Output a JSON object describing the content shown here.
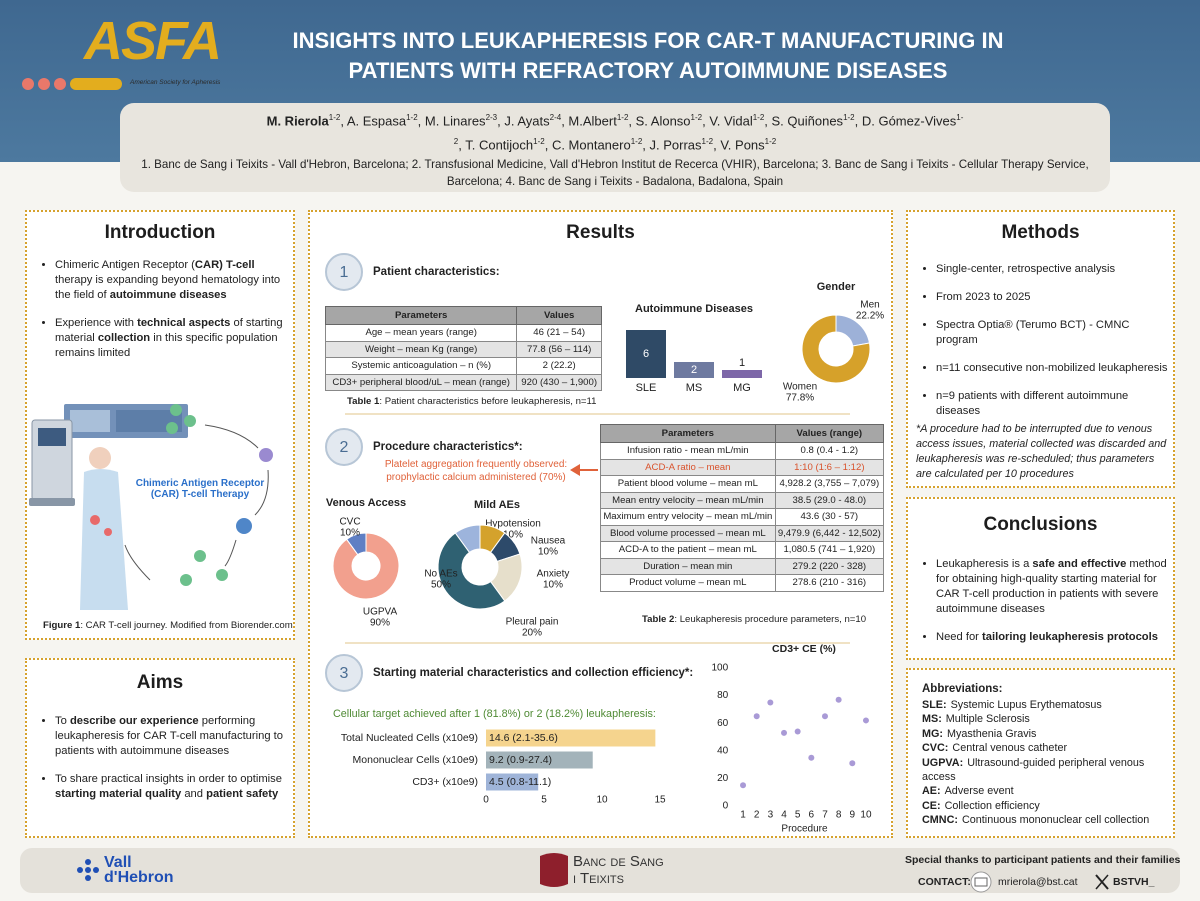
{
  "header": {
    "logo": {
      "name": "ASFA",
      "tagline": "American Society for Apheresis"
    },
    "title": [
      "INSIGHTS INTO LEUKAPHERESIS FOR CAR-T MANUFACTURING IN",
      "PATIENTS WITH REFRACTORY AUTOIMMUNE DISEASES"
    ],
    "authors": [
      {
        "text": "M. Rierola",
        "sup": "1-2",
        "bold": true
      },
      {
        "text": ", A. Espasa",
        "sup": "1-2"
      },
      {
        "text": ", M. Linares",
        "sup": "2-3"
      },
      {
        "text": ", J. Ayats",
        "sup": "2-4"
      },
      {
        "text": ", M.Albert",
        "sup": "1-2"
      },
      {
        "text": ", S. Alonso",
        "sup": "1-2"
      },
      {
        "text": ", V. Vidal",
        "sup": "1-2"
      },
      {
        "text": ", S. Quiñones",
        "sup": "1-2"
      },
      {
        "text": ", D. Gómez-Vives",
        "sup": "1-2"
      },
      {
        "text": ", T. Contijoch",
        "sup": "1-2"
      },
      {
        "text": ", C. Montanero",
        "sup": "1-2"
      },
      {
        "text": ", J. Porras",
        "sup": "1-2"
      },
      {
        "text": ", V. Pons",
        "sup": "1-2"
      }
    ],
    "affiliations": "1. Banc de Sang i Teixits - Vall d'Hebron, Barcelona; 2. Transfusional Medicine, Vall d'Hebron Institut de Recerca (VHIR), Barcelona; 3. Banc de Sang i Teixits - Cellular Therapy Service, Barcelona; 4. Banc de Sang i Teixits - Badalona, Badalona, Spain"
  },
  "introduction": {
    "title": "Introduction",
    "bullets": [
      [
        {
          "text": "Chimeric Antigen Receptor ("
        },
        {
          "text": "CAR) T-cell",
          "bold": true
        },
        {
          "text": " therapy is expanding beyond hematology into the field of "
        },
        {
          "text": "autoimmune diseases",
          "bold": true
        }
      ],
      [
        {
          "text": "Experience with "
        },
        {
          "text": "technical aspects",
          "bold": true
        },
        {
          "text": " of starting material "
        },
        {
          "text": "collection",
          "bold": true
        },
        {
          "text": " in this specific population remains limited"
        }
      ]
    ],
    "figure": {
      "label": "Chimeric Antigen Receptor (CAR) T-cell Therapy",
      "caption": {
        "label": "Figure 1",
        "text": ": CAR T-cell  journey. Modified from Biorender.com"
      }
    }
  },
  "aims": {
    "title": "Aims",
    "bullets": [
      [
        {
          "text": "To "
        },
        {
          "text": "describe our experience",
          "bold": true
        },
        {
          "text": " performing leukapheresis for CAR T-cell manufacturing to patients with autoimmune diseases"
        }
      ],
      [
        {
          "text": "To share practical insights in order to optimise "
        },
        {
          "text": "starting material quality",
          "bold": true
        },
        {
          "text": " and "
        },
        {
          "text": "patient safety",
          "bold": true
        }
      ]
    ]
  },
  "results": {
    "title": "Results",
    "patient": {
      "number": "1",
      "heading": "Patient characteristics:",
      "table": {
        "headers": [
          "Parameters",
          "Values"
        ],
        "rows": [
          [
            "Age – mean years (range)",
            "46 (21 – 54)"
          ],
          [
            "Weight – mean Kg (range)",
            "77.8 (56 – 114)"
          ],
          [
            "Systemic anticoagulation – n (%)",
            "2 (22.2)"
          ],
          [
            "CD3+ peripheral blood/uL – mean (range)",
            "920 (430 – 1,900)"
          ]
        ],
        "caption": {
          "label": "Table 1",
          "text": ": Patient characteristics before leukapheresis, n=11"
        }
      },
      "diseases": {
        "type": "bar",
        "title": "Autoimmune Diseases",
        "categories": [
          "SLE",
          "MS",
          "MG"
        ],
        "values": [
          6,
          2,
          1
        ],
        "colors": [
          "#2f4a66",
          "#6e7aa0",
          "#7d67a8"
        ]
      },
      "gender": {
        "type": "pie",
        "title": "Gender",
        "categories": [
          "Men",
          "Women"
        ],
        "values": [
          22.2,
          77.8
        ],
        "value_labels": [
          "22.2%",
          "77.8%"
        ],
        "colors": [
          "#9db1d8",
          "#d6a12a"
        ]
      }
    },
    "procedure": {
      "number": "2",
      "heading": "Procedure characteristics*:",
      "note": "Platelet aggregation frequently observed: prophylactic calcium administered (70%)",
      "table": {
        "headers": [
          "Parameters",
          "Values (range)"
        ],
        "rows": [
          [
            "Infusion ratio - mean mL/min",
            "0.8 (0.4 - 1.2)"
          ],
          [
            "ACD-A ratio – mean",
            "1:10 (1:6 – 1:12)"
          ],
          [
            "Patient blood volume – mean mL",
            "4,928.2 (3,755 – 7,079)"
          ],
          [
            "Mean entry velocity – mean mL/min",
            "38.5 (29.0 - 48.0)"
          ],
          [
            "Maximum entry velocity – mean mL/min",
            "43.6 (30 - 57)"
          ],
          [
            "Blood volume processed – mean mL",
            "9,479.9 (6,442 - 12,502)"
          ],
          [
            "ACD-A to the patient – mean mL",
            "1,080.5 (741 – 1,920)"
          ],
          [
            "Duration – mean min",
            "279.2 (220 - 328)"
          ],
          [
            "Product volume – mean mL",
            "278.6 (210 - 316)"
          ]
        ],
        "highlight_row": 1,
        "caption": {
          "label": "Table 2",
          "text": ": Leukapheresis procedure parameters, n=10"
        }
      },
      "venous_access": {
        "type": "pie",
        "title": "Venous Access",
        "categories": [
          "CVC",
          "UGPVA"
        ],
        "values": [
          10,
          90
        ],
        "value_labels": [
          "10%",
          "90%"
        ],
        "colors": [
          "#5f7fc4",
          "#f2a08e"
        ]
      },
      "adverse_events": {
        "type": "pie",
        "title": "Mild AEs",
        "categories": [
          "Hypotension",
          "Nausea",
          "Anxiety",
          "Pleural pain",
          "No AEs"
        ],
        "values": [
          10,
          10,
          10,
          20,
          50
        ],
        "value_labels": [
          "10%",
          "10%",
          "10%",
          "20%",
          "50%"
        ],
        "colors": [
          "#9db4dc",
          "#d4a22c",
          "#2d4a6a",
          "#e6dfcb",
          "#2f6172"
        ]
      }
    },
    "starting": {
      "number": "3",
      "heading": "Starting material characteristics and collection efficiency*:",
      "target": "Cellular target achieved after 1 (81.8%) or 2 (18.2%) leukapheresis:",
      "cells": {
        "type": "bar",
        "orientation": "horizontal",
        "categories": [
          "Total Nucleated Cells (x10e9)",
          "Mononuclear Cells (x10e9)",
          "CD3+ (x10e9)"
        ],
        "values": [
          14.6,
          9.2,
          4.5
        ],
        "value_labels": [
          "14.6 (2.1-35.6)",
          "9.2 (0.9-27.4)",
          "4.5 (0.8-11.1)"
        ],
        "colors": [
          "#f5d48e",
          "#a3b3ba",
          "#9fb4d8"
        ],
        "xlim": [
          0,
          15
        ],
        "xticks": [
          0,
          5,
          10,
          15
        ]
      },
      "efficiency": {
        "type": "scatter",
        "title": "CD3+ CE (%)",
        "x_label": "Procedure",
        "x": [
          1,
          2,
          3,
          4,
          5,
          6,
          7,
          8,
          9,
          10
        ],
        "values": [
          15,
          65,
          75,
          53,
          54,
          35,
          65,
          77,
          31,
          62
        ],
        "color": "#a99ad6",
        "xlim": [
          0.5,
          10.5
        ],
        "xticks": [
          1,
          2,
          3,
          4,
          5,
          6,
          7,
          8,
          9,
          10
        ],
        "ylim": [
          0,
          100
        ],
        "yticks": [
          0,
          20,
          40,
          60,
          80,
          100
        ]
      }
    }
  },
  "methods": {
    "title": "Methods",
    "bullets": [
      "Single-center, retrospective analysis",
      "From 2023 to 2025",
      "Spectra Optia® (Terumo BCT) - CMNC program",
      "n=11 consecutive non-mobilized leukapheresis",
      "n=9 patients with different autoimmune diseases"
    ],
    "note": "*A procedure had to be interrupted due to venous access issues, material collected was discarded and leukapheresis was re-scheduled; thus parameters are calculated per 10 procedures"
  },
  "conclusions": {
    "title": "Conclusions",
    "bullets": [
      [
        {
          "text": "Leukapheresis is a "
        },
        {
          "text": "safe and effective",
          "bold": true
        },
        {
          "text": " method for obtaining high-quality starting material for CAR T-cell production in patients with severe autoimmune diseases"
        }
      ],
      [
        {
          "text": "Need for "
        },
        {
          "text": "tailoring leukapheresis protocols",
          "bold": true
        }
      ]
    ]
  },
  "abbreviations": {
    "title": "Abbreviations:",
    "items": [
      {
        "term": "SLE:",
        "def": "Systemic Lupus Erythematosus"
      },
      {
        "term": "MS:",
        "def": "Multiple Sclerosis"
      },
      {
        "term": "MG:",
        "def": "Myasthenia Gravis"
      },
      {
        "term": "CVC:",
        "def": "Central venous catheter"
      },
      {
        "term": "UGPVA:",
        "def": "Ultrasound-guided peripheral venous access"
      },
      {
        "term": "AE:",
        "def": "Adverse event"
      },
      {
        "term": "CE:",
        "def": "Collection efficiency"
      },
      {
        "term": "CMNC:",
        "def": "Continuous mononuclear cell collection"
      }
    ]
  },
  "footer": {
    "vall_hebron": "Vall d'Hebron",
    "bank": [
      "Banc de Sang",
      "i Teixits"
    ],
    "thanks": "Special thanks to participant patients and their families",
    "contact_label": "CONTACT:",
    "email": "mrierola@bst.cat",
    "handle": "BSTVH_"
  }
}
